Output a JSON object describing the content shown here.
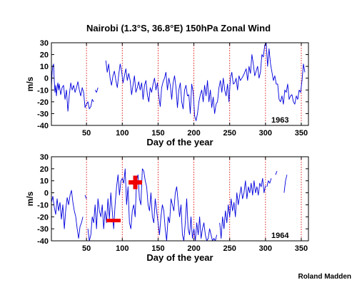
{
  "title": "Nairobi (1.3°S, 36.8°E) 150hPa Zonal Wind",
  "credit": "Roland Madden",
  "colors": {
    "series": "#0000dd",
    "ref_lines": "#dd0000",
    "annotation": "#ee0000",
    "axis": "#000000"
  },
  "annotations": {
    "plus_symbol": "+",
    "minus_symbol": "−"
  },
  "chart_data": [
    {
      "type": "line",
      "panel_label": "1963",
      "xlabel": "Day of the year",
      "ylabel": "m/s",
      "xlim": [
        1,
        360
      ],
      "ylim": [
        -40,
        30
      ],
      "xticks": [
        50,
        100,
        150,
        200,
        250,
        300,
        350
      ],
      "yticks": [
        -40,
        -30,
        -20,
        -10,
        0,
        10,
        20,
        30
      ],
      "ref_lines_x": [
        50,
        100,
        150,
        200,
        250,
        300,
        350
      ],
      "grid": false,
      "segments": [
        {
          "x": [
            1,
            2,
            3,
            4,
            5,
            6,
            7,
            8,
            9,
            10,
            11,
            12,
            14,
            16,
            18,
            20,
            22,
            24,
            26,
            28,
            30,
            32,
            34,
            36,
            38,
            40,
            42,
            44,
            46,
            48,
            50,
            52,
            54,
            56,
            58,
            60
          ],
          "y": [
            -8,
            5,
            10,
            12,
            -2,
            -12,
            -6,
            -15,
            -8,
            -4,
            -10,
            -5,
            -14,
            -8,
            -6,
            -18,
            -10,
            -28,
            -14,
            -4,
            -10,
            -6,
            -12,
            -8,
            -3,
            -10,
            -15,
            -8,
            -12,
            -25,
            -22,
            -20,
            -26,
            -24,
            -18,
            -20
          ]
        },
        {
          "x": [
            62,
            64,
            66
          ],
          "y": [
            -10,
            -12,
            -8
          ]
        },
        {
          "x": [
            77,
            79,
            81,
            83,
            85,
            87,
            89,
            91,
            93,
            95,
            97,
            99,
            101,
            103,
            105,
            107,
            109,
            111,
            113,
            115,
            117,
            119,
            121,
            123,
            125,
            127,
            129,
            131,
            133,
            135,
            137,
            139,
            141,
            143,
            145,
            147,
            149,
            151,
            153,
            155,
            157,
            159,
            161,
            163,
            165,
            167,
            169,
            171,
            173,
            175,
            177,
            179,
            181,
            183,
            185,
            187,
            189,
            191,
            193,
            195,
            197,
            199,
            201,
            203,
            205,
            207,
            209,
            211,
            213,
            215,
            217,
            219,
            221,
            223,
            225,
            227,
            229,
            231,
            233,
            235,
            237,
            239,
            241,
            243,
            245,
            247,
            249,
            251,
            253,
            255,
            257,
            259,
            261,
            263,
            265,
            267,
            269,
            271,
            273,
            275,
            277,
            279,
            281,
            283,
            285,
            287,
            289,
            291,
            293,
            295,
            297,
            299,
            301,
            303,
            305,
            307,
            309,
            311,
            313,
            315,
            317,
            319,
            321,
            323,
            325,
            327,
            329,
            331,
            333,
            335,
            337,
            339,
            341,
            343,
            345,
            347,
            349,
            351,
            353,
            355
          ],
          "y": [
            15,
            5,
            12,
            0,
            -6,
            2,
            6,
            -2,
            -8,
            3,
            12,
            6,
            -4,
            2,
            8,
            -2,
            4,
            -2,
            -14,
            -6,
            2,
            -12,
            -8,
            -3,
            -10,
            -4,
            -18,
            -6,
            -2,
            -14,
            -20,
            -8,
            -12,
            -5,
            0,
            -10,
            -4,
            -15,
            -24,
            -8,
            -3,
            0,
            5,
            -10,
            0,
            -6,
            -18,
            -4,
            2,
            -8,
            -25,
            -10,
            -4,
            -20,
            -26,
            -10,
            -6,
            -15,
            -14,
            -30,
            -5,
            -12,
            -32,
            -36,
            -30,
            -20,
            -14,
            -10,
            -20,
            -6,
            -15,
            -2,
            -20,
            -10,
            -25,
            -16,
            -30,
            -22,
            -20,
            -8,
            -2,
            -12,
            0,
            -10,
            -15,
            -5,
            -20,
            0,
            5,
            -5,
            -4,
            0,
            -10,
            2,
            -2,
            0,
            2,
            5,
            8,
            -2,
            10,
            4,
            20,
            12,
            2,
            6,
            10,
            0,
            5,
            20,
            18,
            28,
            30,
            10,
            25,
            12,
            5,
            -2,
            2,
            -5,
            -5,
            -18,
            -20,
            -15,
            -22,
            -10,
            -12,
            -5,
            -18,
            -15,
            -14,
            -20,
            -22,
            -15,
            -18,
            -10,
            -12,
            -2,
            12,
            5
          ]
        }
      ]
    },
    {
      "type": "line",
      "panel_label": "1964",
      "xlabel": "Day of the year",
      "ylabel": "m/s",
      "xlim": [
        1,
        360
      ],
      "ylim": [
        -40,
        30
      ],
      "xticks": [
        50,
        100,
        150,
        200,
        250,
        300,
        350
      ],
      "yticks": [
        -40,
        -30,
        -20,
        -10,
        0,
        10,
        20,
        30
      ],
      "ref_lines_x": [
        50,
        100,
        150,
        200,
        250,
        300,
        350
      ],
      "grid": false,
      "segments": [
        {
          "x": [
            1,
            3,
            5,
            7,
            9,
            11,
            13,
            15,
            17,
            19,
            21,
            23,
            25,
            27,
            29,
            31,
            33,
            35,
            37,
            39,
            41,
            43,
            45
          ],
          "y": [
            -8,
            -3,
            -12,
            -18,
            -5,
            -15,
            -8,
            -22,
            -10,
            -30,
            -14,
            -4,
            -10,
            -2,
            2,
            -8,
            -15,
            -20,
            -30,
            -38,
            -28,
            -25,
            -20
          ]
        },
        {
          "x": [
            48,
            50
          ],
          "y": [
            -2,
            -5
          ]
        },
        {
          "x": [
            52,
            54,
            56,
            58,
            60,
            62,
            64,
            66,
            68,
            70,
            72,
            74,
            76,
            78,
            80,
            82,
            84,
            86,
            88,
            90,
            92,
            94,
            96,
            98,
            100,
            102,
            104,
            106,
            108,
            110,
            112,
            114,
            116,
            118,
            120,
            122,
            124,
            126,
            128,
            130,
            132,
            134,
            136,
            138,
            140,
            142,
            144,
            146,
            148,
            150,
            152,
            154,
            156,
            158,
            160,
            162,
            164,
            166,
            168,
            170,
            172,
            174,
            176,
            178,
            180,
            182,
            184,
            186,
            188,
            190,
            192,
            194,
            196,
            198,
            200,
            202,
            204,
            206,
            208,
            210,
            212,
            214,
            216,
            218,
            220,
            222,
            224,
            226,
            228,
            230,
            232
          ],
          "y": [
            -30,
            -40,
            -35,
            -20,
            -25,
            -10,
            -30,
            -5,
            -15,
            -20,
            -10,
            -30,
            -15,
            -25,
            -5,
            -22,
            0,
            -15,
            -30,
            -10,
            5,
            15,
            -2,
            10,
            12,
            8,
            20,
            -10,
            5,
            -25,
            -30,
            -15,
            -10,
            -20,
            10,
            15,
            -5,
            -10,
            20,
            18,
            10,
            5,
            -10,
            -15,
            0,
            -20,
            -25,
            -5,
            -15,
            -25,
            -35,
            -20,
            -10,
            -15,
            -30,
            -40,
            -20,
            -25,
            -5,
            -10,
            -15,
            0,
            5,
            -8,
            -20,
            -10,
            -35,
            -40,
            -25,
            -5,
            -30,
            -35,
            -20,
            -38,
            -30,
            -40,
            -25,
            -35,
            -20,
            -38,
            -30,
            -25,
            -35,
            -40,
            -38,
            -30,
            -35,
            -40,
            -38,
            -40,
            -35
          ]
        },
        {
          "x": [
            236,
            238,
            240,
            242,
            244,
            246,
            248,
            250,
            252,
            254,
            256,
            258,
            260,
            262,
            264,
            266,
            268,
            270,
            272,
            274,
            276,
            278,
            280,
            282,
            284,
            286,
            288,
            290,
            292,
            294,
            296,
            298,
            300
          ],
          "y": [
            -25,
            -38,
            -20,
            -30,
            -15,
            -25,
            -10,
            -20,
            -5,
            -15,
            -8,
            -20,
            0,
            -10,
            -2,
            5,
            -5,
            0,
            10,
            -5,
            5,
            0,
            8,
            -2,
            10,
            0,
            5,
            -2,
            8,
            5,
            12,
            0,
            6
          ]
        },
        {
          "x": [
            302,
            304,
            306,
            308
          ],
          "y": [
            5,
            10,
            8,
            12
          ]
        },
        {
          "x": [
            314,
            316
          ],
          "y": [
            15,
            18
          ]
        },
        {
          "x": [
            326,
            328,
            330
          ],
          "y": [
            0,
            10,
            15
          ]
        }
      ]
    }
  ]
}
